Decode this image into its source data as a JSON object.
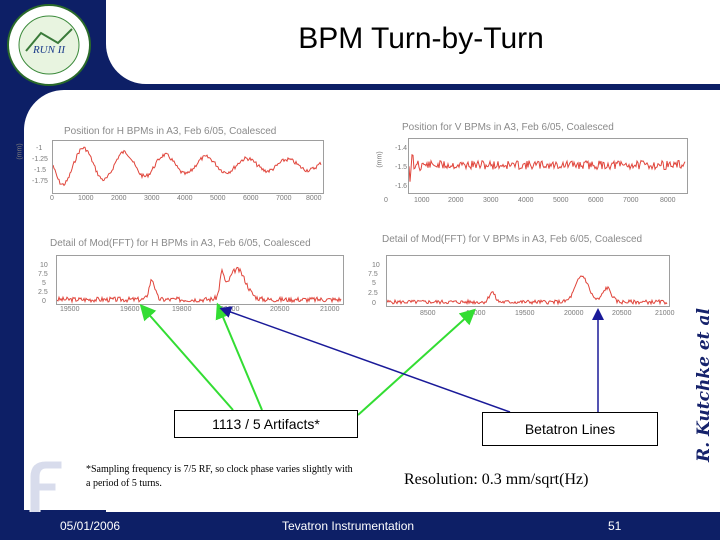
{
  "slide": {
    "title": "BPM Turn-by-Turn",
    "signature": "R. Kutchke et al",
    "footer_date": "05/01/2006",
    "footer_center": "Tevatron Instrumentation",
    "footer_page": "51",
    "footnote": "*Sampling frequency is 7/5 RF, so clock phase varies slightly with a period of 5 turns.",
    "resolution": "Resolution: 0.3 mm/sqrt(Hz)",
    "callout_artifacts": "1113 / 5 Artifacts*",
    "callout_betatron": "Betatron Lines",
    "logo_text": "RUN II",
    "colors": {
      "navy": "#0d1f66",
      "plot_red": "#e0443a",
      "arrow_green": "#33dd33",
      "arrow_blue": "#1a1a99"
    }
  },
  "plots": {
    "h_pos": {
      "title": "Position for H BPMs in A3, Feb 6/05, Coalesced",
      "ylabel": "(mm)",
      "yticks": [
        "-1",
        "-1.25",
        "-1.5",
        "-1.75"
      ],
      "xticks": [
        "0",
        "1000",
        "2000",
        "3000",
        "4000",
        "5000",
        "6000",
        "7000",
        "8000"
      ]
    },
    "v_pos": {
      "title": "Position for V BPMs in A3, Feb 6/05, Coalesced",
      "ylabel": "(mm)",
      "yticks": [
        "-1.4",
        "-1.5",
        "-1.6"
      ],
      "xticks": [
        "0",
        "1000",
        "2000",
        "3000",
        "4000",
        "5000",
        "6000",
        "7000",
        "8000"
      ]
    },
    "h_fft": {
      "title": "Detail of Mod(FFT) for H BPMs in A3, Feb 6/05, Coalesced",
      "yticks": [
        "10",
        "7.5",
        "5",
        "2.5",
        "0"
      ],
      "xticks": [
        "19500",
        "19600",
        "19800",
        "20000",
        "20500",
        "21000"
      ]
    },
    "v_fft": {
      "title": "Detail of Mod(FFT) for V BPMs in A3, Feb 6/05, Coalesced",
      "yticks": [
        "10",
        "7.5",
        "5",
        "2.5",
        "0"
      ],
      "xticks": [
        "8500",
        "19000",
        "19500",
        "20000",
        "20500",
        "21000"
      ]
    }
  }
}
